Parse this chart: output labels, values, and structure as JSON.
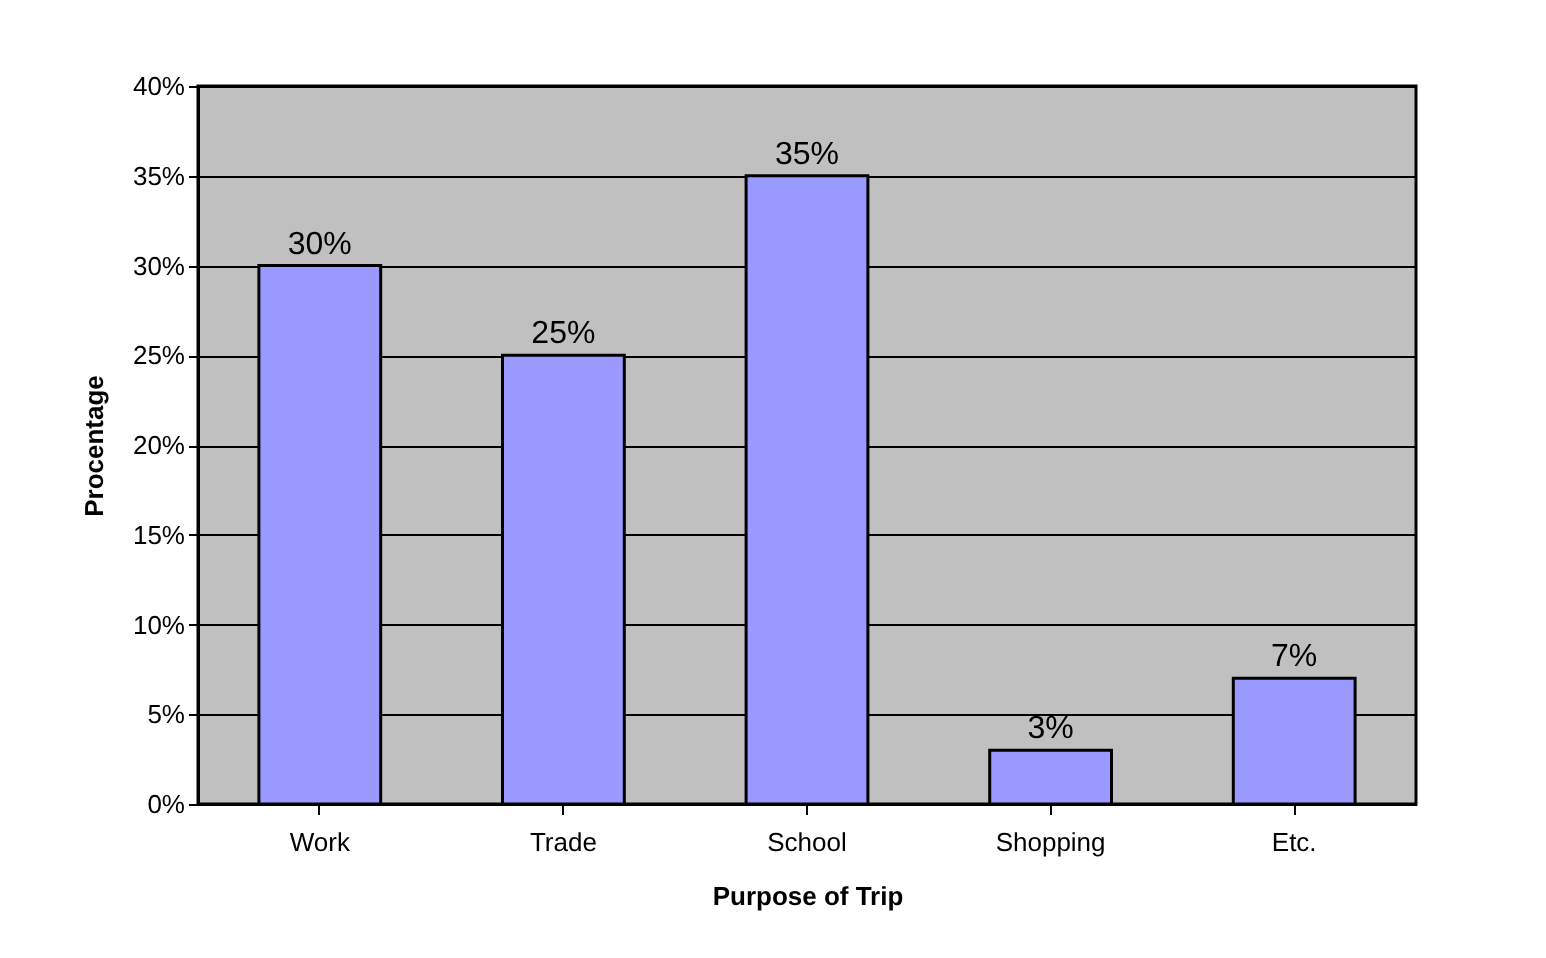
{
  "chart_data": {
    "type": "bar",
    "xlabel": "Purpose of Trip",
    "ylabel": "Procentage",
    "categories": [
      "Work",
      "Trade",
      "School",
      "Shopping",
      "Etc."
    ],
    "values": [
      30,
      25,
      35,
      3,
      7
    ],
    "color": "#9999ff",
    "value_labels": [
      "30%",
      "25%",
      "35%",
      "3%",
      "7%"
    ],
    "ylim": [
      0,
      40
    ],
    "yticks": [
      {
        "value": 0,
        "label": "0%"
      },
      {
        "value": 5,
        "label": "5%"
      },
      {
        "value": 10,
        "label": "10%"
      },
      {
        "value": 15,
        "label": "15%"
      },
      {
        "value": 20,
        "label": "20%"
      },
      {
        "value": 25,
        "label": "25%"
      },
      {
        "value": 30,
        "label": "30%"
      },
      {
        "value": 35,
        "label": "35%"
      },
      {
        "value": 40,
        "label": "40%"
      }
    ],
    "grid": "y"
  }
}
